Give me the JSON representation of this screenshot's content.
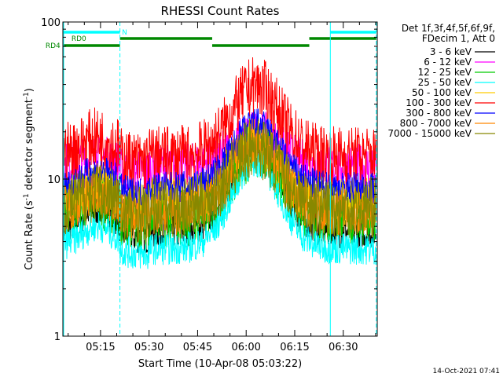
{
  "chart_data": {
    "type": "line",
    "title": "RHESSI Count Rates",
    "xlabel": "Start Time (10-Apr-08 05:03:22)",
    "ylabel_main": "Count Rate (s",
    "ylabel_sup1": "-1",
    "ylabel_mid": " detector segment",
    "ylabel_sup2": "-1",
    "ylabel_end": ")",
    "yscale": "log",
    "xlim_minutes": [
      303.37,
      400.5
    ],
    "ylim": [
      1,
      100
    ],
    "x_ticks": [
      {
        "m": 315,
        "label": "05:15"
      },
      {
        "m": 330,
        "label": "05:30"
      },
      {
        "m": 345,
        "label": "05:45"
      },
      {
        "m": 360,
        "label": "06:00"
      },
      {
        "m": 375,
        "label": "06:15"
      },
      {
        "m": 390,
        "label": "06:30"
      }
    ],
    "y_ticks": [
      {
        "v": 1,
        "label": "1"
      },
      {
        "v": 10,
        "label": "10"
      },
      {
        "v": 100,
        "label": "100"
      }
    ],
    "legend_header": [
      "Det 1f,3f,4f,5f,6f,9f,",
      "FDecim 1, Att 0"
    ],
    "series": [
      {
        "name": "3 - 6 keV",
        "color": "#000000",
        "base": 4.6,
        "peak": 16.5
      },
      {
        "name": "6 - 12 keV",
        "color": "#ff00ff",
        "base": 12.0,
        "peak": 19.5
      },
      {
        "name": "12 - 25 keV",
        "color": "#00cc00",
        "base": 5.8,
        "peak": 15.5
      },
      {
        "name": "25 - 50 keV",
        "color": "#00ffff",
        "base": 3.6,
        "peak": 13.0
      },
      {
        "name": "50 - 100 keV",
        "color": "#ffcc00",
        "base": 7.2,
        "peak": 17.0
      },
      {
        "name": "100 - 300 keV",
        "color": "#ff0000",
        "base": 14.0,
        "peak": 39.0
      },
      {
        "name": "300 - 800 keV",
        "color": "#0000ff",
        "base": 8.8,
        "peak": 22.5
      },
      {
        "name": "800 - 7000 keV",
        "color": "#ff8800",
        "base": 6.2,
        "peak": 17.5
      },
      {
        "name": "7000 - 15000 keV",
        "color": "#888800",
        "base": 6.6,
        "peak": 16.0
      }
    ],
    "vertical_markers": [
      {
        "m": 321.0,
        "style": "dashed"
      },
      {
        "m": 386.0,
        "style": "solid"
      },
      {
        "m": 400.2,
        "style": "dashed"
      }
    ],
    "state_bars": [
      {
        "label": "",
        "level": 1,
        "color": "#00ffff",
        "start": 303.37,
        "end": 321.0
      },
      {
        "label": "",
        "level": 1,
        "color": "#00ffff",
        "start": 386.0,
        "end": 400.2
      },
      {
        "label": "RD0",
        "level": 2,
        "color": "#008800",
        "start": 321.0,
        "end": 349.5
      },
      {
        "label": "RD0",
        "level": 2,
        "color": "#008800",
        "start": 379.5,
        "end": 400.2
      },
      {
        "label": "RD4",
        "level": 3,
        "color": "#008800",
        "start": 303.37,
        "end": 321.0
      },
      {
        "label": "RD4",
        "level": 3,
        "color": "#008800",
        "start": 349.5,
        "end": 379.5
      }
    ],
    "state_labels": [
      {
        "text": "N",
        "color": "#00ffff",
        "m": 321.6,
        "level": 1
      },
      {
        "text": "RD0",
        "color": "#008800",
        "m": 306.0,
        "level": 2
      },
      {
        "text": "RD4",
        "color": "#008800",
        "m": 298.0,
        "level": 3
      }
    ],
    "grid": false
  },
  "footer": {
    "timestamp": "14-Oct-2021 07:41"
  }
}
